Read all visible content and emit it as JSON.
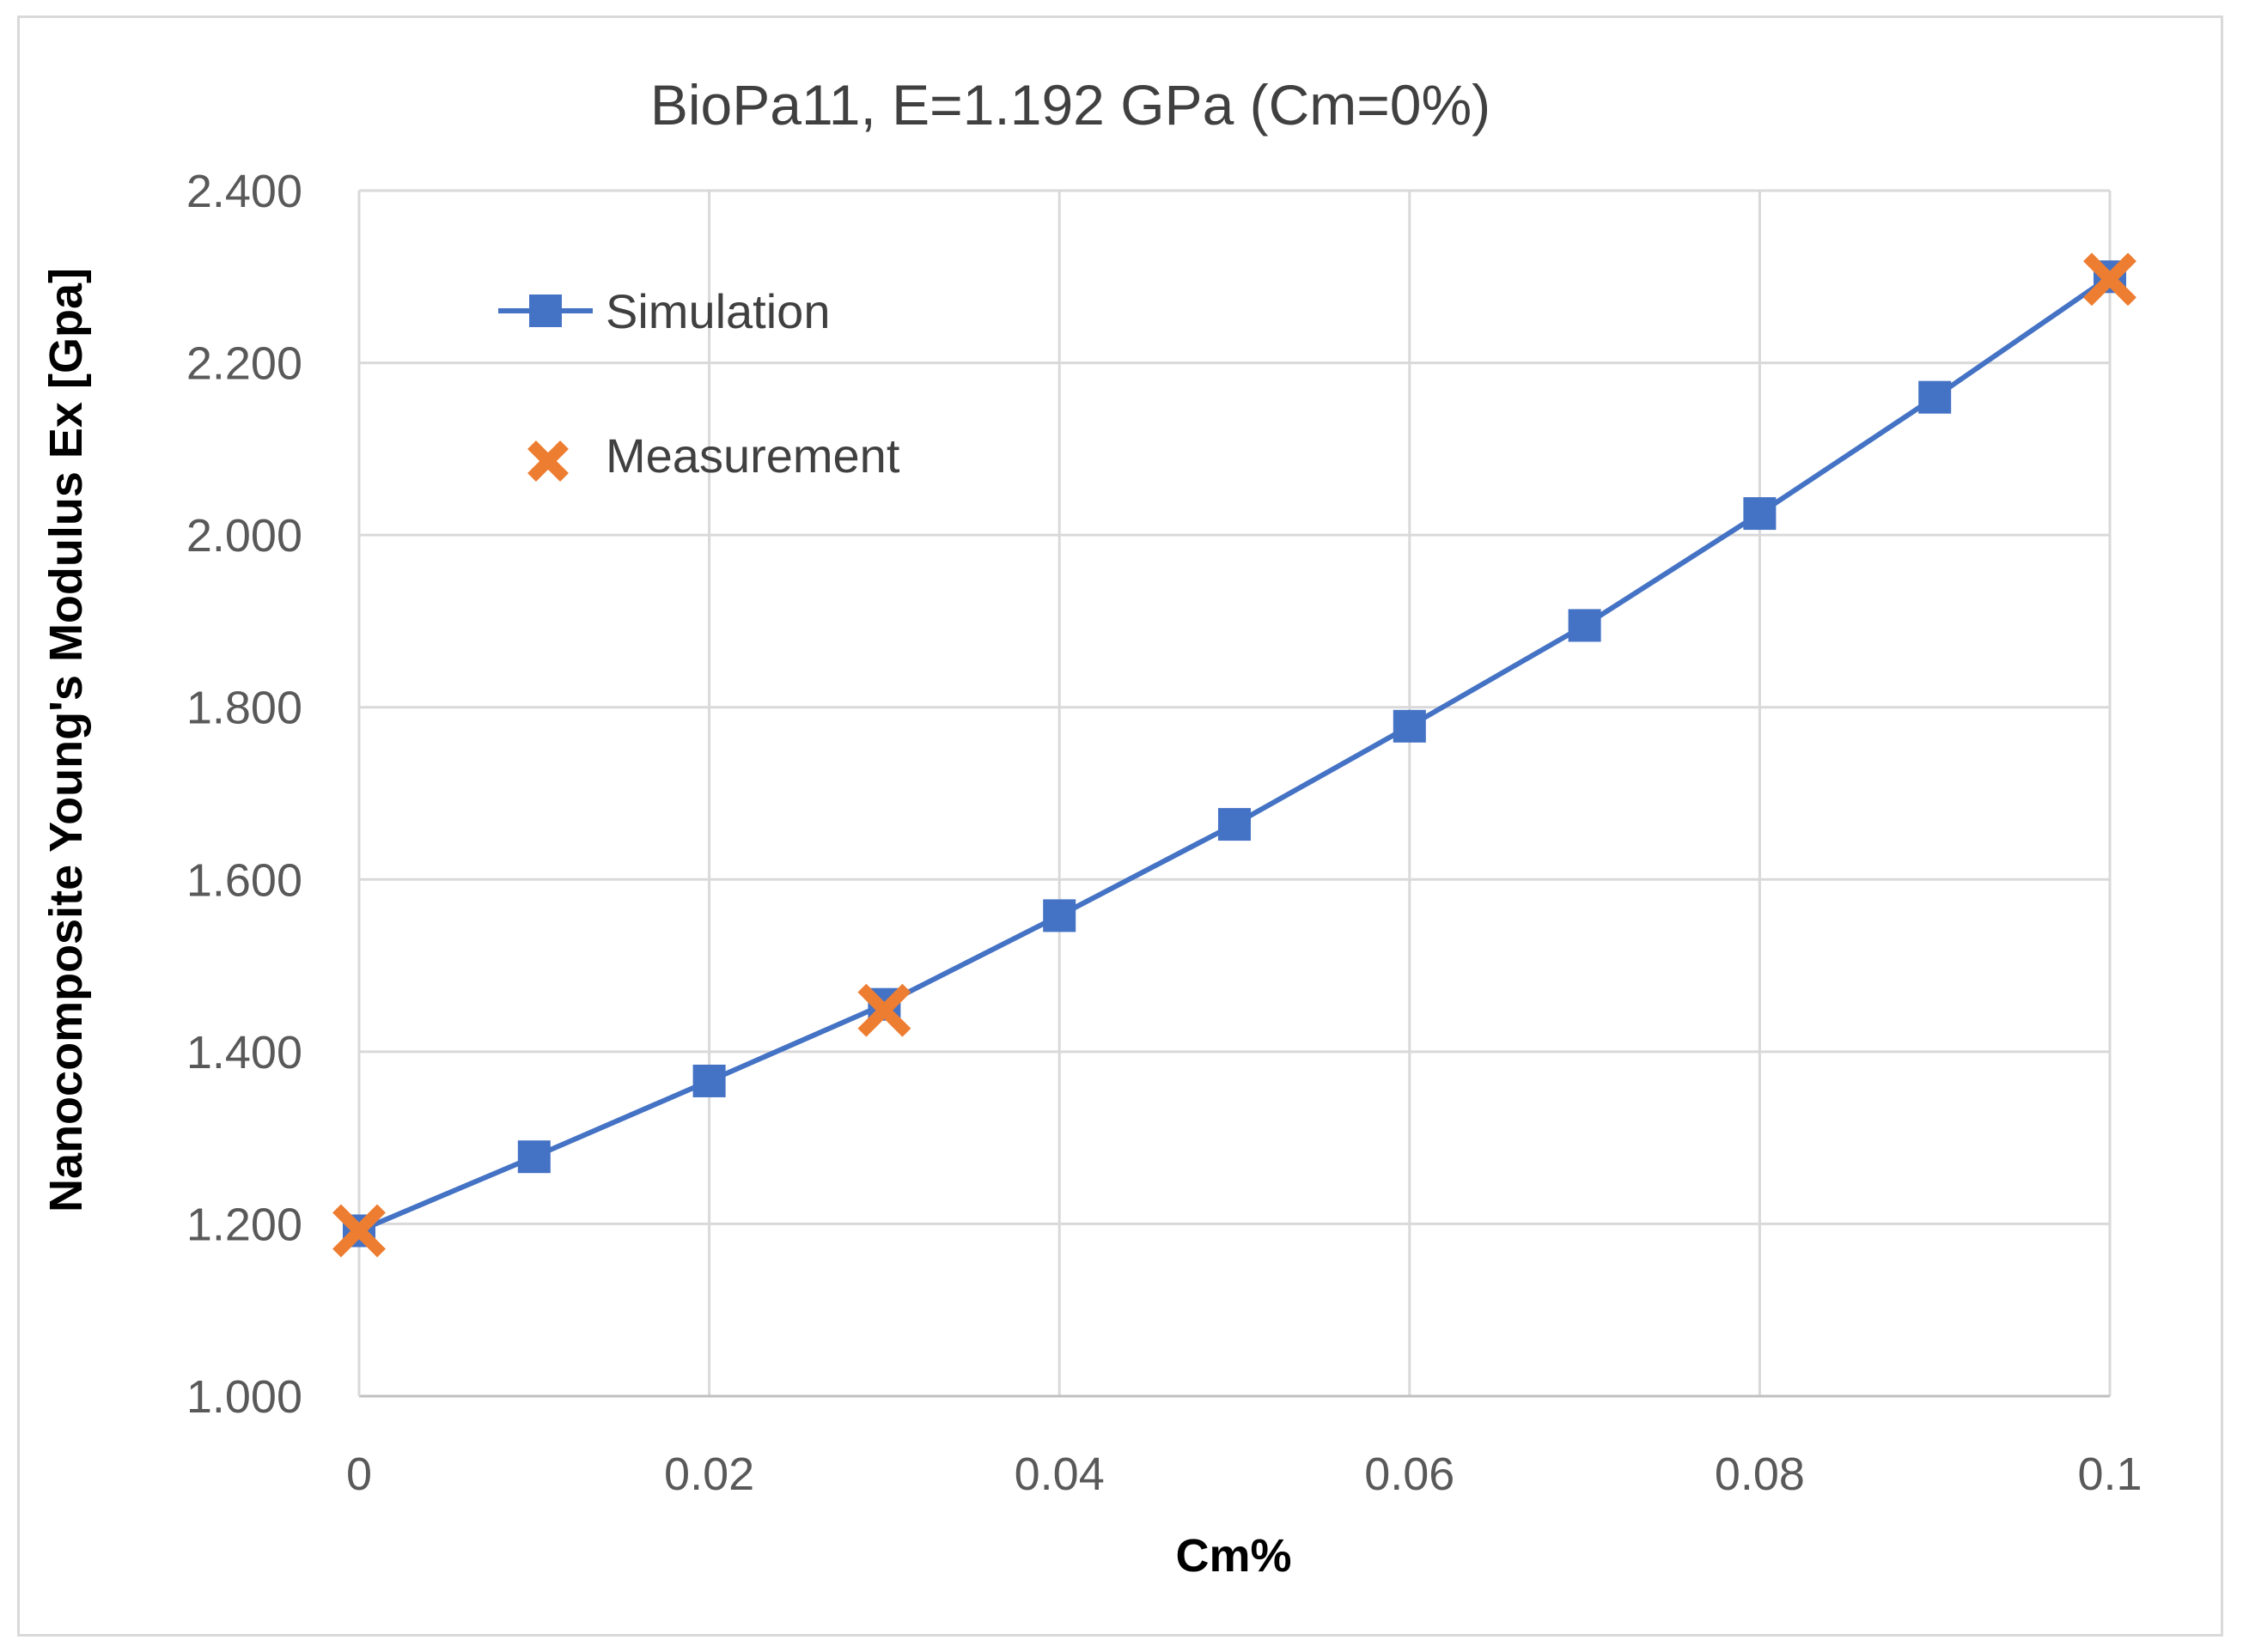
{
  "chart_data": {
    "type": "line",
    "title": "BioPa11, E=1.192 GPa (Cm=0%)",
    "xlabel": "Cm%",
    "ylabel": "Nanocomposite Young's Modulus Ex [Gpa]",
    "xlim": [
      0,
      0.1
    ],
    "ylim": [
      1.0,
      2.4
    ],
    "x_ticks": [
      0,
      0.02,
      0.04,
      0.06,
      0.08,
      0.1
    ],
    "x_tick_labels": [
      "0",
      "0.02",
      "0.04",
      "0.06",
      "0.08",
      "0.1"
    ],
    "y_ticks": [
      1.0,
      1.2,
      1.4,
      1.6,
      1.8,
      2.0,
      2.2,
      2.4
    ],
    "y_tick_labels": [
      "1.000",
      "1.200",
      "1.400",
      "1.600",
      "1.800",
      "2.000",
      "2.200",
      "2.400"
    ],
    "grid": true,
    "legend_position": "top-left",
    "series": [
      {
        "name": "Simulation",
        "marker": "square",
        "line": true,
        "color": "#4472C4",
        "x": [
          0,
          0.01,
          0.02,
          0.03,
          0.04,
          0.05,
          0.06,
          0.07,
          0.08,
          0.09,
          0.1
        ],
        "y": [
          1.192,
          1.278,
          1.366,
          1.455,
          1.558,
          1.664,
          1.778,
          1.895,
          2.025,
          2.16,
          2.3
        ]
      },
      {
        "name": "Measurement",
        "marker": "x",
        "line": false,
        "color": "#ED7D31",
        "x": [
          0,
          0.03,
          0.1
        ],
        "y": [
          1.192,
          1.448,
          2.297
        ]
      }
    ]
  }
}
